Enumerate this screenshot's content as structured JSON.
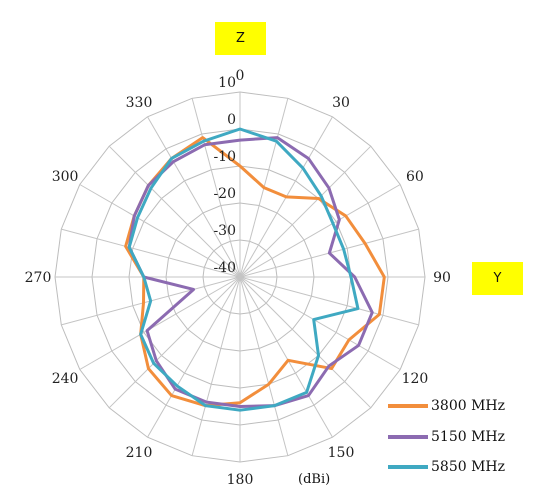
{
  "labels": {
    "z_axis": "Z",
    "y_axis": "Y",
    "unit": "(dBi)"
  },
  "chart_data": {
    "type": "polar-line",
    "angle_unit": "degrees",
    "angle_start": "top",
    "angle_direction": "clockwise",
    "angle_ticks": [
      0,
      30,
      60,
      90,
      120,
      150,
      180,
      210,
      240,
      270,
      300,
      330
    ],
    "angle_tick_labels": [
      "0",
      "30",
      "60",
      "90",
      "120",
      "150",
      "180",
      "210",
      "240",
      "270",
      "300",
      "330"
    ],
    "radial_ticks": [
      -40,
      -30,
      -20,
      -10,
      0,
      10
    ],
    "radial_tick_labels": [
      "-40",
      "-30",
      "-20",
      "-10",
      "0",
      "10"
    ],
    "rlim": [
      -40,
      10
    ],
    "angles": [
      0,
      15,
      30,
      45,
      60,
      75,
      90,
      105,
      120,
      135,
      150,
      165,
      180,
      195,
      210,
      225,
      240,
      255,
      270,
      285,
      300,
      315,
      330,
      345
    ],
    "series": [
      {
        "name": "3800 MHz",
        "color": "#f28e3c",
        "values": [
          -10,
          -15,
          -15,
          -10,
          -7,
          -5,
          -1,
          -1,
          -6,
          -5,
          -14,
          -10,
          -6,
          -4,
          -3,
          -5,
          -9,
          -13,
          -14,
          -8,
          -7,
          -5,
          -3,
          -1
        ]
      },
      {
        "name": "5150 MHz",
        "color": "#8c6bb1",
        "values": [
          -3,
          -1,
          -3,
          -6,
          -9,
          -15,
          -9,
          -3,
          -3,
          -6,
          -3,
          -4,
          -5,
          -5,
          -5,
          -8,
          -11,
          -27,
          -14,
          -9,
          -7,
          -5,
          -4,
          -3
        ]
      },
      {
        "name": "5850 MHz",
        "color": "#3fa9c2",
        "values": [
          0,
          -2,
          -6,
          -9,
          -11,
          -11,
          -10,
          -7,
          -17,
          -10,
          -4,
          -4,
          -4,
          -4,
          -6,
          -7,
          -9,
          -15,
          -14,
          -9,
          -8,
          -6,
          -3,
          -2
        ]
      }
    ]
  }
}
